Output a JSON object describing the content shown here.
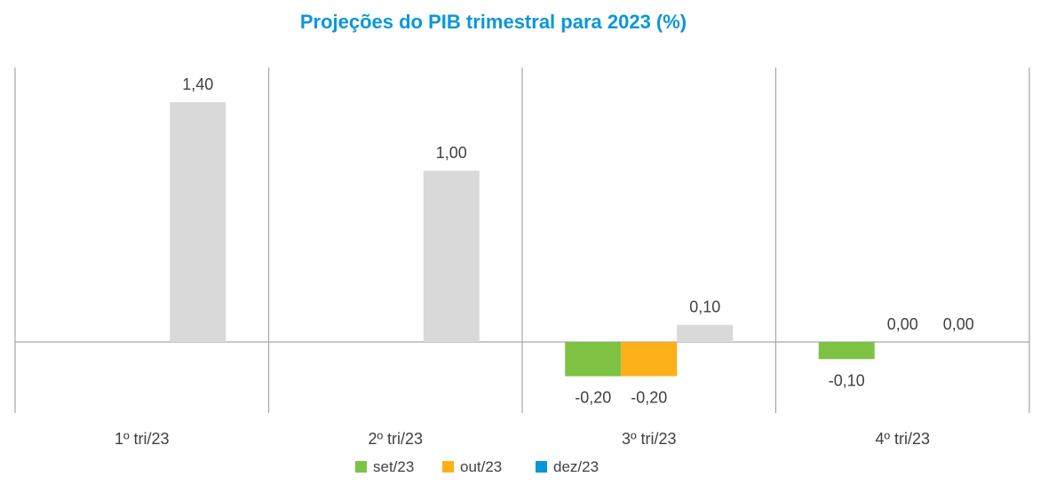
{
  "chart_data": {
    "type": "bar",
    "title": "Projeções do PIB trimestral para 2023 (%)",
    "categories": [
      "1º tri/23",
      "2º tri/23",
      "3º tri/23",
      "4º tri/23"
    ],
    "series": [
      {
        "name": "set/23",
        "color": "#7dc242",
        "values": [
          null,
          null,
          -0.2,
          -0.1
        ]
      },
      {
        "name": "out/23",
        "color": "#fbb019",
        "values": [
          null,
          null,
          -0.2,
          0.0
        ]
      },
      {
        "name": "dez/23",
        "color": "#0a97d9",
        "values": [
          null,
          null,
          null,
          null
        ]
      }
    ],
    "highlight_series": {
      "color": "#d9d9d9",
      "values": [
        1.4,
        1.0,
        0.1,
        0.0
      ]
    },
    "data_labels": [
      [
        "___",
        "___",
        "___",
        "___"
      ],
      [
        "",
        "",
        "-0,20",
        "-0,10"
      ],
      [
        "",
        "",
        "-0,20",
        "0,00"
      ],
      [
        "1,40",
        "1,00",
        "0,10",
        "0,00"
      ]
    ],
    "ylim": [
      -0.42,
      1.6
    ],
    "grid": false,
    "legend_position": "bottom"
  }
}
